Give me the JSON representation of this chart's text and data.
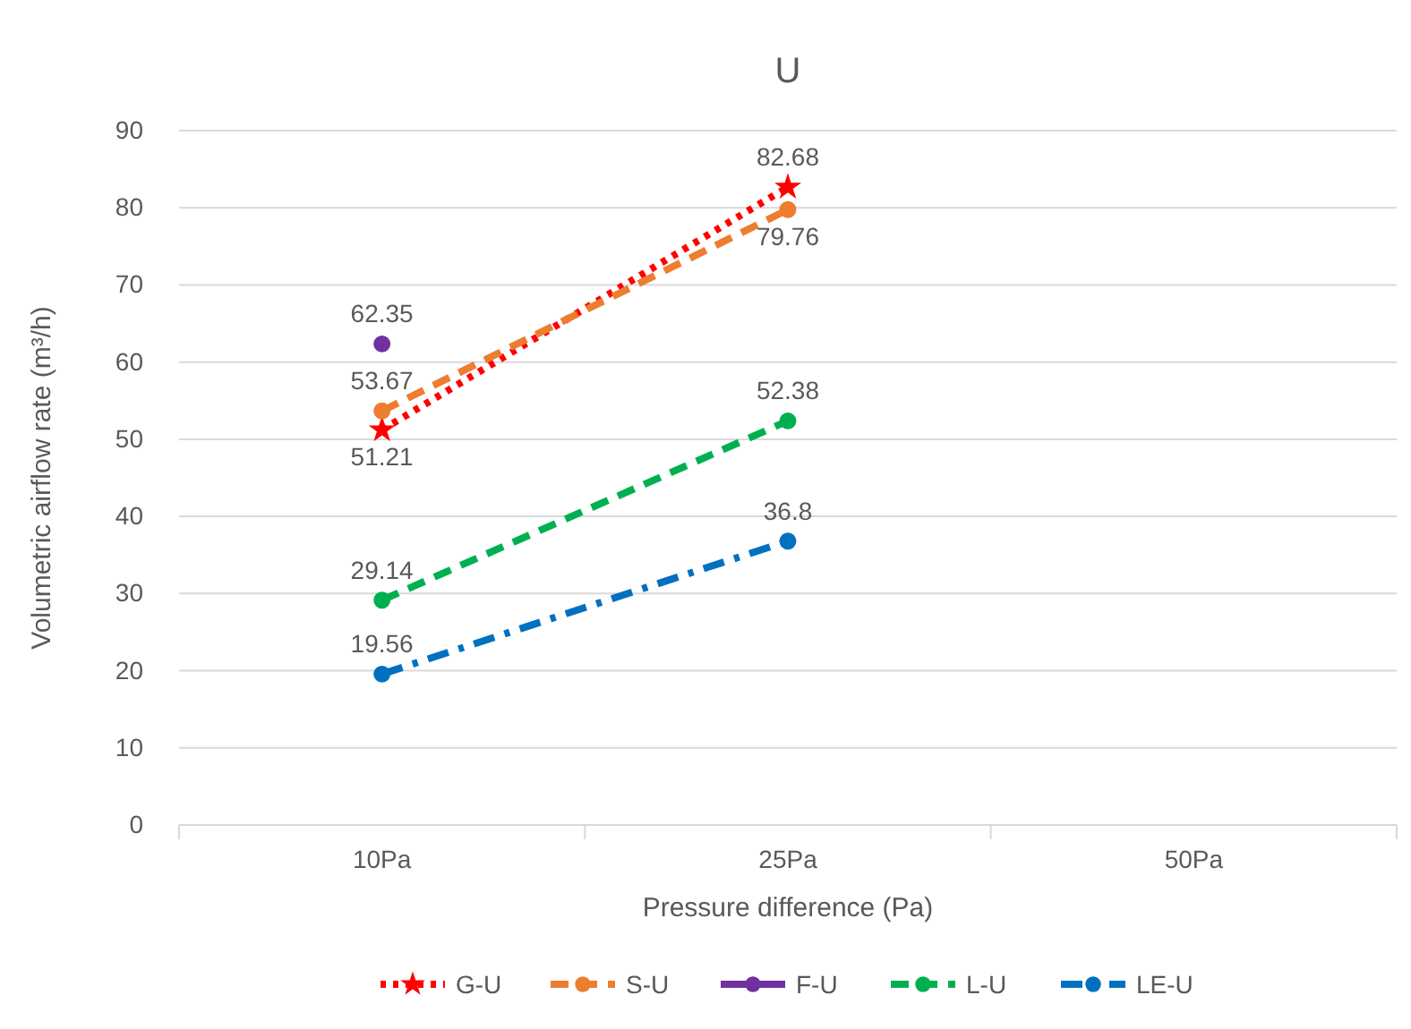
{
  "chart_data": {
    "type": "line",
    "title": "U",
    "xlabel": "Pressure difference (Pa)",
    "ylabel": "Volumetric airflow rate (m³/h)",
    "categories": [
      "10Pa",
      "25Pa",
      "50Pa"
    ],
    "series": [
      {
        "name": "G-U",
        "color": "#ff0000",
        "values": [
          51.21,
          82.68,
          null
        ],
        "line_style": "dotted",
        "marker": "star"
      },
      {
        "name": "S-U",
        "color": "#ed7d31",
        "values": [
          53.67,
          79.76,
          null
        ],
        "line_style": "dashed",
        "marker": "circle"
      },
      {
        "name": "F-U",
        "color": "#7030a0",
        "values": [
          62.35,
          null,
          null
        ],
        "line_style": "solid",
        "marker": "circle"
      },
      {
        "name": "L-U",
        "color": "#00b050",
        "values": [
          29.14,
          52.38,
          null
        ],
        "line_style": "dashed",
        "marker": "circle"
      },
      {
        "name": "LE-U",
        "color": "#0070c0",
        "values": [
          19.56,
          36.8,
          null
        ],
        "line_style": "dashdot",
        "marker": "circle"
      }
    ],
    "ylim": [
      0,
      90
    ],
    "yticks": [
      0,
      10,
      20,
      30,
      40,
      50,
      60,
      70,
      80,
      90
    ],
    "grid": "y",
    "legend": "bottom",
    "data_labels": true
  }
}
